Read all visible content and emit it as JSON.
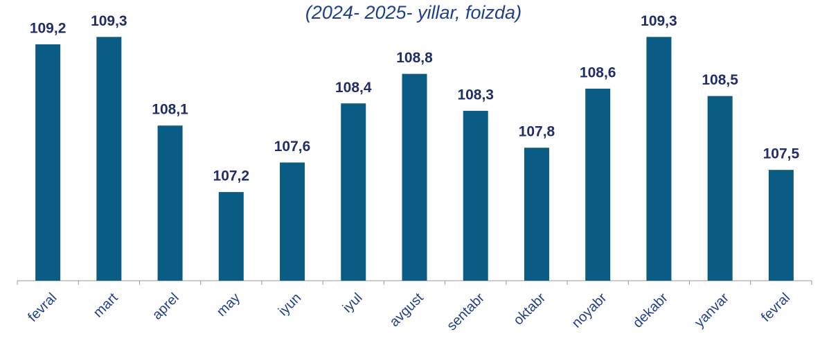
{
  "chart_data": {
    "type": "bar",
    "title": "(2024- 2025- yillar, foizda)",
    "categories": [
      "fevral",
      "mart",
      "aprel",
      "may",
      "iyun",
      "iyul",
      "avgust",
      "sentabr",
      "oktabr",
      "noyabr",
      "dekabr",
      "yanvar",
      "fevral"
    ],
    "values": [
      109.2,
      109.3,
      108.1,
      107.2,
      107.6,
      108.4,
      108.8,
      108.3,
      107.8,
      108.6,
      109.3,
      108.5,
      107.5
    ],
    "value_labels": [
      "109,2",
      "109,3",
      "108,1",
      "107,2",
      "107,6",
      "108,4",
      "108,8",
      "108,3",
      "107,8",
      "108,6",
      "109,3",
      "108,5",
      "107,5"
    ],
    "color": "#0b5c85",
    "ylim": [
      106,
      109.8
    ]
  }
}
